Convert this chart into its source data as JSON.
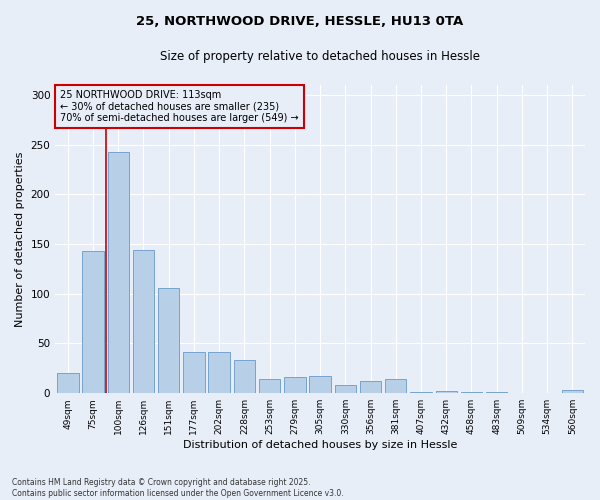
{
  "title1": "25, NORTHWOOD DRIVE, HESSLE, HU13 0TA",
  "title2": "Size of property relative to detached houses in Hessle",
  "xlabel": "Distribution of detached houses by size in Hessle",
  "ylabel": "Number of detached properties",
  "background_color": "#e8eef8",
  "bar_color": "#b8cfe8",
  "bar_edge_color": "#6699cc",
  "categories": [
    "49sqm",
    "75sqm",
    "100sqm",
    "126sqm",
    "151sqm",
    "177sqm",
    "202sqm",
    "228sqm",
    "253sqm",
    "279sqm",
    "305sqm",
    "330sqm",
    "356sqm",
    "381sqm",
    "407sqm",
    "432sqm",
    "458sqm",
    "483sqm",
    "509sqm",
    "534sqm",
    "560sqm"
  ],
  "values": [
    20,
    143,
    243,
    144,
    106,
    41,
    41,
    33,
    14,
    16,
    17,
    8,
    12,
    14,
    1,
    2,
    1,
    1,
    0,
    0,
    3
  ],
  "vline_color": "#cc0000",
  "annotation_text": "25 NORTHWOOD DRIVE: 113sqm\n← 30% of detached houses are smaller (235)\n70% of semi-detached houses are larger (549) →",
  "annotation_box_color": "#cc0000",
  "ylim": [
    0,
    310
  ],
  "yticks": [
    0,
    50,
    100,
    150,
    200,
    250,
    300
  ],
  "footnote": "Contains HM Land Registry data © Crown copyright and database right 2025.\nContains public sector information licensed under the Open Government Licence v3.0.",
  "title_fontsize": 9.5,
  "subtitle_fontsize": 8.5,
  "tick_label_fontsize": 6.5,
  "axis_label_fontsize": 8,
  "annotation_fontsize": 7,
  "footnote_fontsize": 5.5
}
